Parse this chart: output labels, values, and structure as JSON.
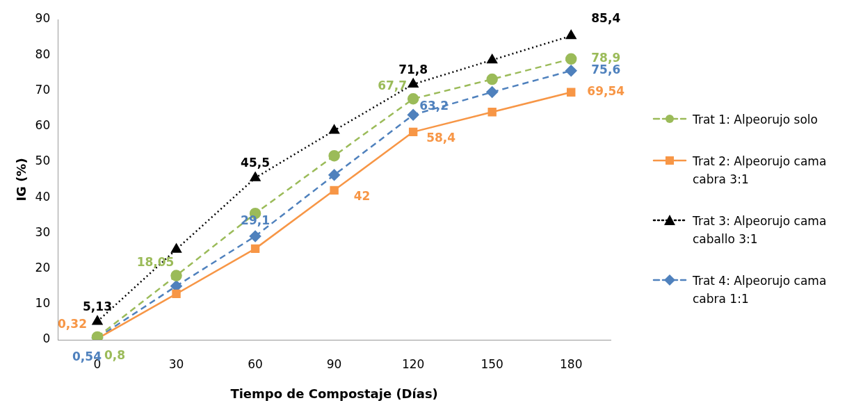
{
  "chart_data": {
    "type": "line",
    "xlabel": "Tiempo de Compostaje (Días)",
    "ylabel": "IG (%)",
    "categories": [
      "0",
      "30",
      "60",
      "90",
      "120",
      "150",
      "180"
    ],
    "ylim": [
      0,
      90
    ],
    "yticks": [
      0,
      10,
      20,
      30,
      40,
      50,
      60,
      70,
      80,
      90
    ],
    "grid": false,
    "legend": "right",
    "series": [
      {
        "name": "Trat 1: Alpeorujo solo",
        "color": "#9bbb59",
        "marker": "circle",
        "line_style": "dashed",
        "values": [
          0.8,
          18.05,
          35.5,
          51.7,
          67.7,
          73.2,
          78.9
        ],
        "value_labels": [
          "0,8",
          "18,05",
          null,
          null,
          "67,7",
          null,
          "78,9"
        ]
      },
      {
        "name": "Trat 2: Alpeorujo cama cabra 3:1",
        "color": "#f79646",
        "marker": "square",
        "line_style": "solid",
        "values": [
          0.32,
          12.9,
          25.6,
          42,
          58.4,
          64,
          69.54
        ],
        "value_labels": [
          "0,32",
          null,
          null,
          "42",
          "58,4",
          null,
          "69,54"
        ]
      },
      {
        "name": "Trat 3: Alpeorujo cama caballo 3:1",
        "color": "#000000",
        "marker": "triangle",
        "line_style": "dotted",
        "values": [
          5.13,
          25.4,
          45.5,
          58.8,
          71.8,
          78.6,
          85.4
        ],
        "value_labels": [
          "5,13",
          null,
          "45,5",
          null,
          "71,8",
          null,
          "85,4"
        ]
      },
      {
        "name": "Trat 4: Alpeorujo cama cabra 1:1",
        "color": "#4f81bd",
        "marker": "diamond",
        "line_style": "dashed",
        "values": [
          0.54,
          15.1,
          29.1,
          46.3,
          63.2,
          69.6,
          75.6
        ],
        "value_labels": [
          "0,54",
          null,
          "29,1",
          null,
          "63,2",
          null,
          "75,6"
        ]
      }
    ]
  }
}
